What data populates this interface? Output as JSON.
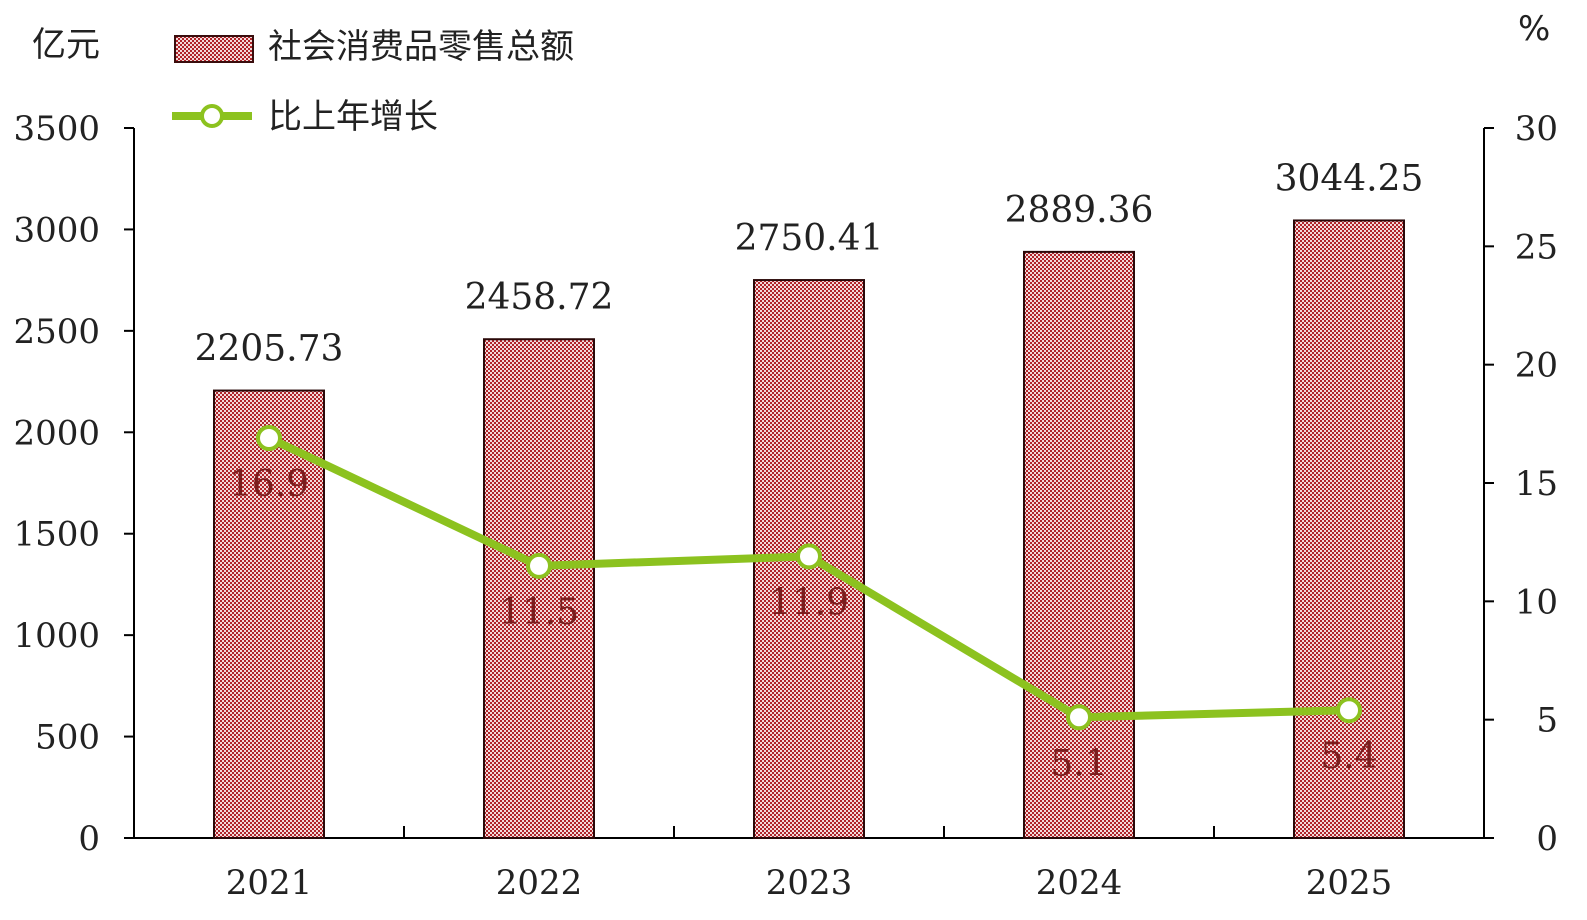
{
  "chart_data": {
    "type": "bar",
    "categories": [
      "2021",
      "2022",
      "2023",
      "2024",
      "2025"
    ],
    "series": [
      {
        "name": "社会消费品零售总额",
        "type": "bar",
        "axis": "left",
        "values": [
          2205.73,
          2458.72,
          2750.41,
          2889.36,
          3044.25
        ],
        "labels": [
          "2205.73",
          "2458.72",
          "2750.41",
          "2889.36",
          "3044.25"
        ],
        "color": "#b0242a"
      },
      {
        "name": "比上年增长",
        "type": "line",
        "axis": "right",
        "values": [
          16.9,
          11.5,
          11.9,
          5.1,
          5.4
        ],
        "labels": [
          "16.9",
          "11.5",
          "11.9",
          "5.1",
          "5.4"
        ],
        "color": "#8cc21f"
      }
    ],
    "left_axis": {
      "unit": "亿元",
      "min": 0,
      "max": 3500,
      "ticks": [
        "0",
        "500",
        "1000",
        "1500",
        "2000",
        "2500",
        "3000",
        "3500"
      ]
    },
    "right_axis": {
      "unit": "%",
      "min": 0,
      "max": 30,
      "ticks": [
        "0",
        "5",
        "10",
        "15",
        "20",
        "25",
        "30"
      ]
    },
    "grid": false,
    "legend_position": "top-left"
  }
}
